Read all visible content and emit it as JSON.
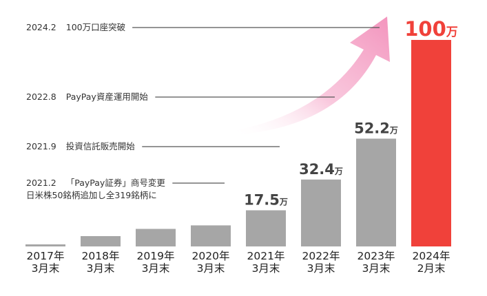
{
  "chart_data": {
    "type": "bar",
    "categories": [
      [
        "2017年",
        "3月末"
      ],
      [
        "2018年",
        "3月末"
      ],
      [
        "2019年",
        "3月末"
      ],
      [
        "2020年",
        "3月末"
      ],
      [
        "2021年",
        "3月末"
      ],
      [
        "2022年",
        "3月末"
      ],
      [
        "2023年",
        "3月末"
      ],
      [
        "2024年",
        "2月末"
      ]
    ],
    "values": [
      0.8,
      5.0,
      8.5,
      10.2,
      17.5,
      32.4,
      52.2,
      100
    ],
    "data_labels": [
      {
        "index": 4,
        "number": "17.5",
        "unit": "万"
      },
      {
        "index": 5,
        "number": "32.4",
        "unit": "万"
      },
      {
        "index": 6,
        "number": "52.2",
        "unit": "万"
      },
      {
        "index": 7,
        "number": "100",
        "unit": "万"
      }
    ],
    "unit": "万",
    "ylim": [
      0,
      100
    ],
    "highlight_index": 7,
    "colors": {
      "bar": "#a6a6a6",
      "highlight_bar": "#f0413a",
      "highlight_label": "#f0413a",
      "label": "#444444",
      "leader_line": "#555555",
      "arrow_start": "#ffffff",
      "arrow_end": "#f394bd"
    },
    "annotations": [
      {
        "date": "2024.2",
        "lines": [
          "100万口座突破"
        ],
        "bar_index": 7
      },
      {
        "date": "2022.8",
        "lines": [
          "PayPay資産運用開始"
        ],
        "bar_index": 6
      },
      {
        "date": "2021.9",
        "lines": [
          "投資信託販売開始"
        ],
        "bar_index": 5
      },
      {
        "date": "2021.2",
        "lines": [
          "「PayPay証券」商号変更",
          "日米株50銘柄追加し全319銘柄に"
        ],
        "bar_index": 4
      }
    ],
    "arrow_icon": "rising-gradient-arrow"
  }
}
